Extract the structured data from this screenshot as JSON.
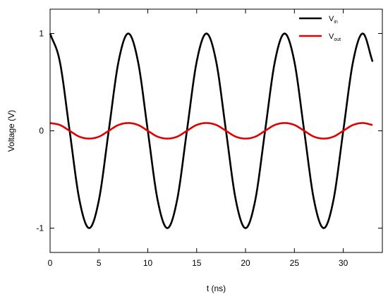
{
  "chart_data": {
    "type": "line",
    "xlabel": "t (ns)",
    "ylabel": "Voltage (V)",
    "xlim": [
      0,
      34
    ],
    "ylim": [
      -1.25,
      1.25
    ],
    "x_ticks": [
      0,
      5,
      10,
      15,
      20,
      25,
      30
    ],
    "x_tick_labels": [
      "0",
      "5",
      "10",
      "15",
      "20",
      "25",
      "30"
    ],
    "y_ticks": [
      1,
      0,
      -1
    ],
    "y_tick_labels": [
      "1",
      "0",
      "-1"
    ],
    "grid": false,
    "legend_position": "top-right",
    "series": [
      {
        "name_main": "V",
        "name_sub": "in",
        "color": "#000000",
        "x": [
          0,
          1,
          2,
          3,
          4,
          5,
          6,
          7,
          8,
          9,
          10,
          11,
          12,
          13,
          14,
          15,
          16,
          17,
          18,
          19,
          20,
          21,
          22,
          23,
          24,
          25,
          26,
          27,
          28,
          29,
          30,
          31,
          32,
          33
        ],
        "y": [
          1,
          0.71,
          0,
          -0.71,
          -1,
          -0.71,
          0,
          0.71,
          1,
          0.71,
          0,
          -0.71,
          -1,
          -0.71,
          0,
          0.71,
          1,
          0.71,
          0,
          -0.71,
          -1,
          -0.71,
          0,
          0.71,
          1,
          0.71,
          0,
          -0.71,
          -1,
          -0.71,
          0,
          0.71,
          1,
          0.71
        ]
      },
      {
        "name_main": "V",
        "name_sub": "out",
        "color": "#e00000",
        "x": [
          0,
          1,
          2,
          3,
          4,
          5,
          6,
          7,
          8,
          9,
          10,
          11,
          12,
          13,
          14,
          15,
          16,
          17,
          18,
          19,
          20,
          21,
          22,
          23,
          24,
          25,
          26,
          27,
          28,
          29,
          30,
          31,
          32,
          33
        ],
        "y": [
          0.08,
          0.06,
          0,
          -0.06,
          -0.08,
          -0.06,
          0,
          0.06,
          0.08,
          0.06,
          0,
          -0.06,
          -0.08,
          -0.06,
          0,
          0.06,
          0.08,
          0.06,
          0,
          -0.06,
          -0.08,
          -0.06,
          0,
          0.06,
          0.08,
          0.06,
          0,
          -0.06,
          -0.08,
          -0.06,
          0,
          0.06,
          0.08,
          0.06
        ]
      }
    ]
  }
}
